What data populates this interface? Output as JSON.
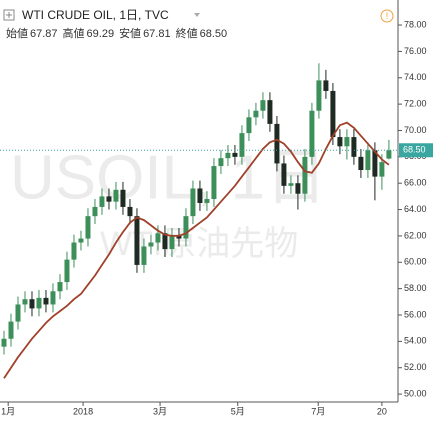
{
  "chart_data": {
    "type": "candlestick",
    "title": "WTI CRUDE OIL, 1日, TVC",
    "ohlc_legend": [
      {
        "name": "始値",
        "value": 67.87,
        "label": "67.87"
      },
      {
        "name": "高値",
        "value": 69.29,
        "label": "69.29"
      },
      {
        "name": "安値",
        "value": 67.81,
        "label": "67.81"
      },
      {
        "name": "終値",
        "value": 68.5,
        "label": "68.50"
      }
    ],
    "watermark": [
      "USOIL, 1日",
      "WTI原油先物"
    ],
    "open": [
      53.6,
      54.2,
      55.5,
      56.8,
      57.2,
      56.5,
      57.3,
      56.8,
      57.8,
      58.5,
      60.2,
      61.5,
      61.8,
      63.5,
      64.2,
      65.0,
      64.6,
      65.5,
      64.2,
      63.5,
      59.8,
      61.2,
      61.5,
      62.2,
      61.0,
      62.0,
      61.8,
      63.5,
      65.6,
      64.5,
      64.8,
      67.3,
      67.9,
      68.3,
      68.0,
      69.8,
      71.0,
      71.5,
      72.3,
      70.5,
      67.5,
      65.8,
      66.0,
      65.2,
      68.0,
      71.5,
      73.8,
      73.0,
      69.5,
      68.8,
      69.5,
      68.0,
      67.0,
      68.5,
      66.5,
      67.87
    ],
    "high": [
      54.8,
      56.1,
      57.4,
      57.8,
      57.8,
      57.9,
      57.9,
      58.4,
      59.1,
      60.8,
      62.1,
      62.4,
      64.1,
      64.8,
      65.6,
      65.6,
      66.1,
      66.1,
      64.8,
      64.1,
      61.8,
      62.1,
      62.8,
      62.8,
      62.6,
      62.6,
      64.1,
      66.2,
      66.2,
      65.4,
      67.9,
      68.5,
      68.9,
      68.9,
      70.4,
      71.6,
      72.1,
      72.9,
      72.9,
      71.1,
      68.1,
      66.6,
      66.6,
      68.6,
      72.1,
      75.1,
      74.6,
      73.6,
      70.1,
      70.1,
      70.1,
      68.6,
      69.1,
      69.1,
      68.2,
      69.29
    ],
    "low": [
      53.0,
      53.6,
      54.9,
      56.2,
      55.9,
      55.9,
      56.2,
      56.2,
      57.2,
      57.9,
      59.6,
      60.9,
      61.2,
      62.9,
      63.6,
      64.0,
      64.0,
      63.6,
      62.9,
      59.2,
      59.2,
      60.6,
      60.9,
      60.4,
      60.4,
      61.2,
      61.2,
      62.9,
      63.9,
      63.9,
      64.2,
      66.7,
      67.3,
      67.4,
      67.4,
      69.2,
      70.4,
      70.9,
      69.9,
      66.9,
      65.2,
      65.2,
      64.0,
      64.6,
      67.4,
      70.9,
      72.4,
      68.9,
      68.2,
      67.8,
      67.4,
      66.4,
      66.4,
      64.7,
      65.5,
      67.81
    ],
    "close": [
      54.2,
      55.5,
      56.8,
      57.2,
      56.5,
      57.3,
      56.8,
      57.8,
      58.5,
      60.2,
      61.5,
      61.8,
      63.5,
      64.2,
      65.0,
      64.6,
      65.5,
      64.2,
      63.5,
      59.8,
      61.2,
      61.5,
      62.2,
      61.0,
      62.0,
      61.8,
      63.5,
      65.6,
      64.5,
      64.8,
      67.3,
      67.9,
      68.3,
      68.0,
      69.8,
      71.0,
      71.5,
      72.3,
      70.5,
      67.5,
      65.8,
      66.0,
      65.2,
      68.0,
      71.5,
      73.8,
      73.0,
      69.5,
      68.8,
      69.5,
      68.0,
      67.0,
      68.5,
      66.5,
      67.6,
      68.5
    ],
    "moving_average": {
      "color": "#a0412a",
      "values": [
        51.2,
        52.0,
        52.8,
        53.5,
        54.2,
        54.8,
        55.4,
        55.9,
        56.3,
        56.7,
        57.2,
        57.6,
        58.3,
        59.0,
        59.8,
        60.6,
        61.5,
        62.3,
        63.0,
        63.4,
        63.2,
        62.8,
        62.4,
        62.1,
        62.0,
        62.0,
        62.2,
        62.6,
        63.0,
        63.4,
        64.0,
        64.6,
        65.2,
        65.8,
        66.5,
        67.2,
        67.9,
        68.6,
        69.1,
        69.3,
        69.0,
        68.4,
        67.6,
        66.9,
        66.8,
        67.5,
        68.6,
        69.6,
        70.4,
        70.6,
        70.2,
        69.6,
        69.0,
        68.4,
        67.8,
        67.4
      ]
    },
    "up_color": "#3d8f5a",
    "down_color": "#1e2a22",
    "last_price": {
      "value": 68.5,
      "label": "68.50",
      "color": "#3aa6a0"
    },
    "ylim": [
      49.4,
      79.9
    ],
    "yticks": [
      {
        "value": 50,
        "label": "50.00"
      },
      {
        "value": 52,
        "label": "52.00"
      },
      {
        "value": 54,
        "label": "54.00"
      },
      {
        "value": 56,
        "label": "56.00"
      },
      {
        "value": 58,
        "label": "58.00"
      },
      {
        "value": 60,
        "label": "60.00"
      },
      {
        "value": 62,
        "label": "62.00"
      },
      {
        "value": 64,
        "label": "64.00"
      },
      {
        "value": 66,
        "label": "66.00"
      },
      {
        "value": 68,
        "label": "68.00"
      },
      {
        "value": 70,
        "label": "70.00"
      },
      {
        "value": 72,
        "label": "72.00"
      },
      {
        "value": 74,
        "label": "74.00"
      },
      {
        "value": 76,
        "label": "76.00"
      },
      {
        "value": 78,
        "label": "78.00"
      }
    ],
    "xlim": [
      -0.57,
      56.3
    ],
    "xticks": [
      {
        "value": 0.6,
        "label": "1月"
      },
      {
        "value": 11.3,
        "label": "2018"
      },
      {
        "value": 22.3,
        "label": "3月"
      },
      {
        "value": 33.4,
        "label": "5月"
      },
      {
        "value": 44.9,
        "label": "7月"
      },
      {
        "value": 54,
        "label": "20"
      }
    ],
    "grid": false
  }
}
